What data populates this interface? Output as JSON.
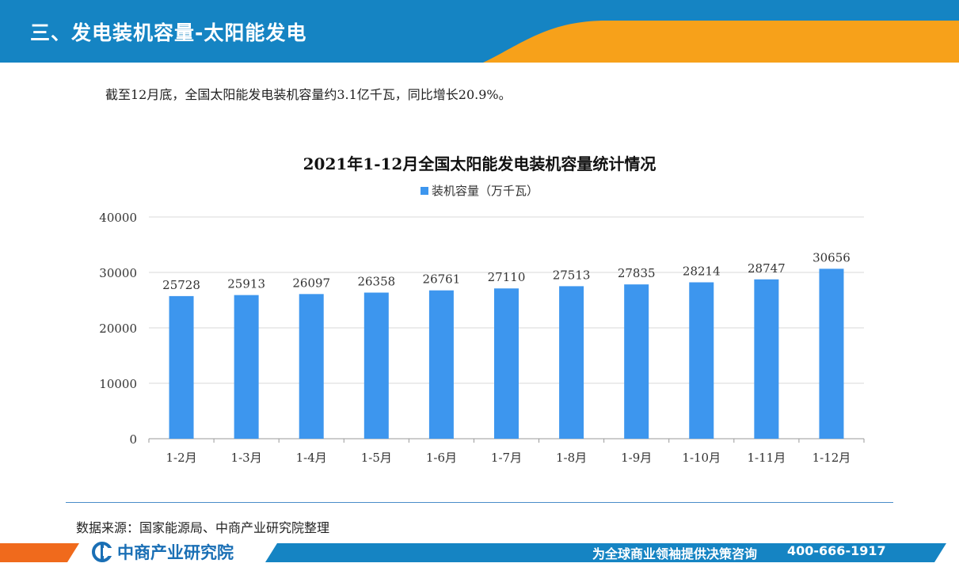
{
  "header": {
    "title": "三、发电装机容量-太阳能发电",
    "colors": {
      "band": "#1584c3",
      "accent": "#f7a11a"
    }
  },
  "summary_text": "截至12月底，全国太阳能发电装机容量约3.1亿千瓦，同比增长20.9%。",
  "chart_data": {
    "type": "bar",
    "title": "2021年1-12月全国太阳能发电装机容量统计情况",
    "categories": [
      "1-2月",
      "1-3月",
      "1-4月",
      "1-5月",
      "1-6月",
      "1-7月",
      "1-8月",
      "1-9月",
      "1-10月",
      "1-11月",
      "1-12月"
    ],
    "series": [
      {
        "name": "装机容量（万千瓦）",
        "values": [
          25728,
          25913,
          26097,
          26358,
          26761,
          27110,
          27513,
          27835,
          28214,
          28747,
          30656
        ],
        "color": "#3d96ee"
      }
    ],
    "ylim": [
      0,
      40000
    ],
    "yticks": [
      0,
      10000,
      20000,
      30000,
      40000
    ],
    "xlabel": "",
    "ylabel": "",
    "grid": true,
    "legend": "top-center",
    "data_labels": true
  },
  "source_text": "数据来源：国家能源局、中商产业研究院整理",
  "footer": {
    "logo_text": "中商产业研究院",
    "slogan": "为全球商业领袖提供决策咨询",
    "phone": "400-666-1917",
    "colors": {
      "band": "#1584c3",
      "accent": "#f06a1c"
    }
  }
}
